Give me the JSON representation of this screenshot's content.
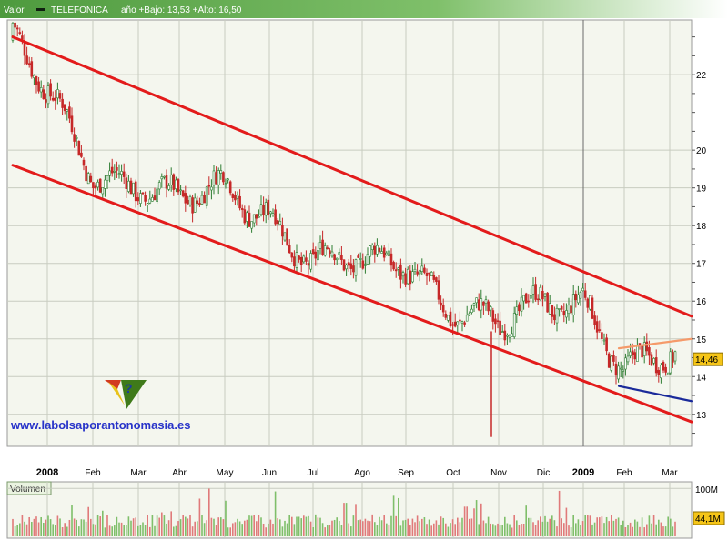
{
  "header": {
    "label": "Valor",
    "ticker": "TELEFONICA",
    "info": "año +Bajo: 13,53 +Alto: 16,50"
  },
  "watermark": {
    "text": "www.labolsaporantonomasia.es"
  },
  "colors": {
    "header_green": "#5aa84a",
    "plot_bg": "#f4f6ee",
    "channel": "#e31b1b",
    "resistance": "#f59a6a",
    "support": "#1a2a9a",
    "candle_up": "#2e7d32",
    "candle_down": "#c62828",
    "price_box": "#f5c518"
  },
  "chart_data": [
    {
      "type": "candlestick",
      "title": "TELEFONICA",
      "y_axis_side": "right",
      "ylim": [
        12.2,
        23.4
      ],
      "y_ticks": [
        13,
        14,
        15,
        16,
        17,
        18,
        19,
        20,
        22
      ],
      "y_tick_labels": [
        "13",
        "14",
        "15",
        "16",
        "17",
        "18",
        "19",
        "20",
        "22"
      ],
      "x_ticks": [
        "2008",
        "Feb",
        "Mar",
        "Abr",
        "May",
        "Jun",
        "Jul",
        "Ago",
        "Sep",
        "Oct",
        "Nov",
        "Dic",
        "2009",
        "Feb",
        "Mar"
      ],
      "year_divider_after": "Dic",
      "grid": true,
      "last_price": 14.46,
      "last_price_label": "14,46",
      "period_low": 13.53,
      "period_high": 16.5,
      "approx_close_by_month": [
        {
          "x": "2008",
          "close": 22.9
        },
        {
          "x": "Feb",
          "close": 19.5
        },
        {
          "x": "Mar",
          "close": 19.2
        },
        {
          "x": "Abr",
          "close": 18.5
        },
        {
          "x": "May",
          "close": 19.0
        },
        {
          "x": "Jun",
          "close": 18.4
        },
        {
          "x": "Jul",
          "close": 17.0
        },
        {
          "x": "Ago",
          "close": 16.9
        },
        {
          "x": "Sep",
          "close": 17.2
        },
        {
          "x": "Oct",
          "close": 15.8
        },
        {
          "x": "Nov",
          "close": 15.2
        },
        {
          "x": "Dic",
          "close": 16.0
        },
        {
          "x": "2009",
          "close": 16.2
        },
        {
          "x": "Feb",
          "close": 14.1
        },
        {
          "x": "Mar",
          "close": 14.46
        }
      ],
      "trendlines": [
        {
          "kind": "channel-upper",
          "color": "#e31b1b",
          "from": {
            "x": "2008",
            "y": 23.0
          },
          "to": {
            "x": "Mar",
            "y": 15.6
          }
        },
        {
          "kind": "channel-lower",
          "color": "#e31b1b",
          "from": {
            "x": "2008",
            "y": 19.6
          },
          "to": {
            "x": "Mar",
            "y": 12.8
          }
        },
        {
          "kind": "resistance",
          "color": "#f59a6a",
          "from": {
            "x": "Feb",
            "y": 14.75
          },
          "to": {
            "x": "Mar",
            "y": 15.0
          }
        },
        {
          "kind": "support",
          "color": "#1a2a9a",
          "from": {
            "x": "Feb",
            "y": 13.75
          },
          "to": {
            "x": "Mar",
            "y": 13.35
          }
        }
      ]
    },
    {
      "type": "bar",
      "title": "Volumen",
      "y_axis_side": "right",
      "ylim": [
        0,
        110
      ],
      "y_tick_labels": [
        "100M"
      ],
      "y_ticks": [
        100
      ],
      "last_value_label": "44,1M",
      "last_value": 44.1,
      "unit": "M"
    }
  ]
}
